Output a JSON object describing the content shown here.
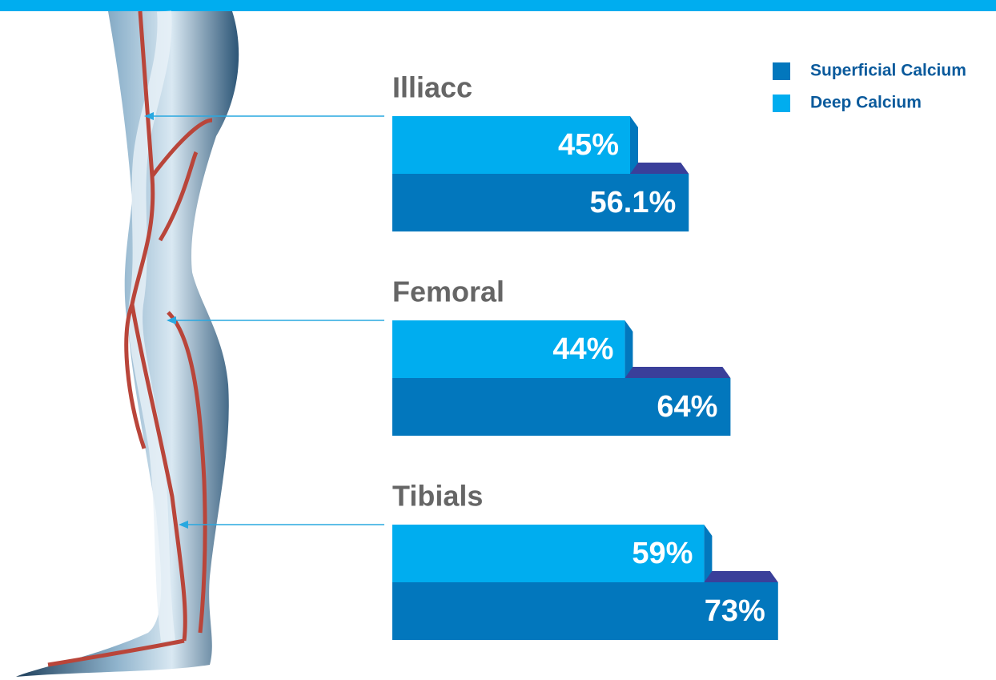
{
  "chart_data": {
    "type": "bar",
    "categories": [
      "Illiacc",
      "Femoral",
      "Tibials"
    ],
    "series": [
      {
        "name": "Superficial Calcium",
        "color": "#0277bd",
        "values": [
          56.1,
          64,
          73
        ],
        "value_labels": [
          "56.1%",
          "64%",
          "73%"
        ]
      },
      {
        "name": "Deep Calcium",
        "color": "#00adef",
        "values": [
          45,
          44,
          59
        ],
        "value_labels": [
          "45%",
          "44%",
          "59%"
        ]
      }
    ]
  }
}
